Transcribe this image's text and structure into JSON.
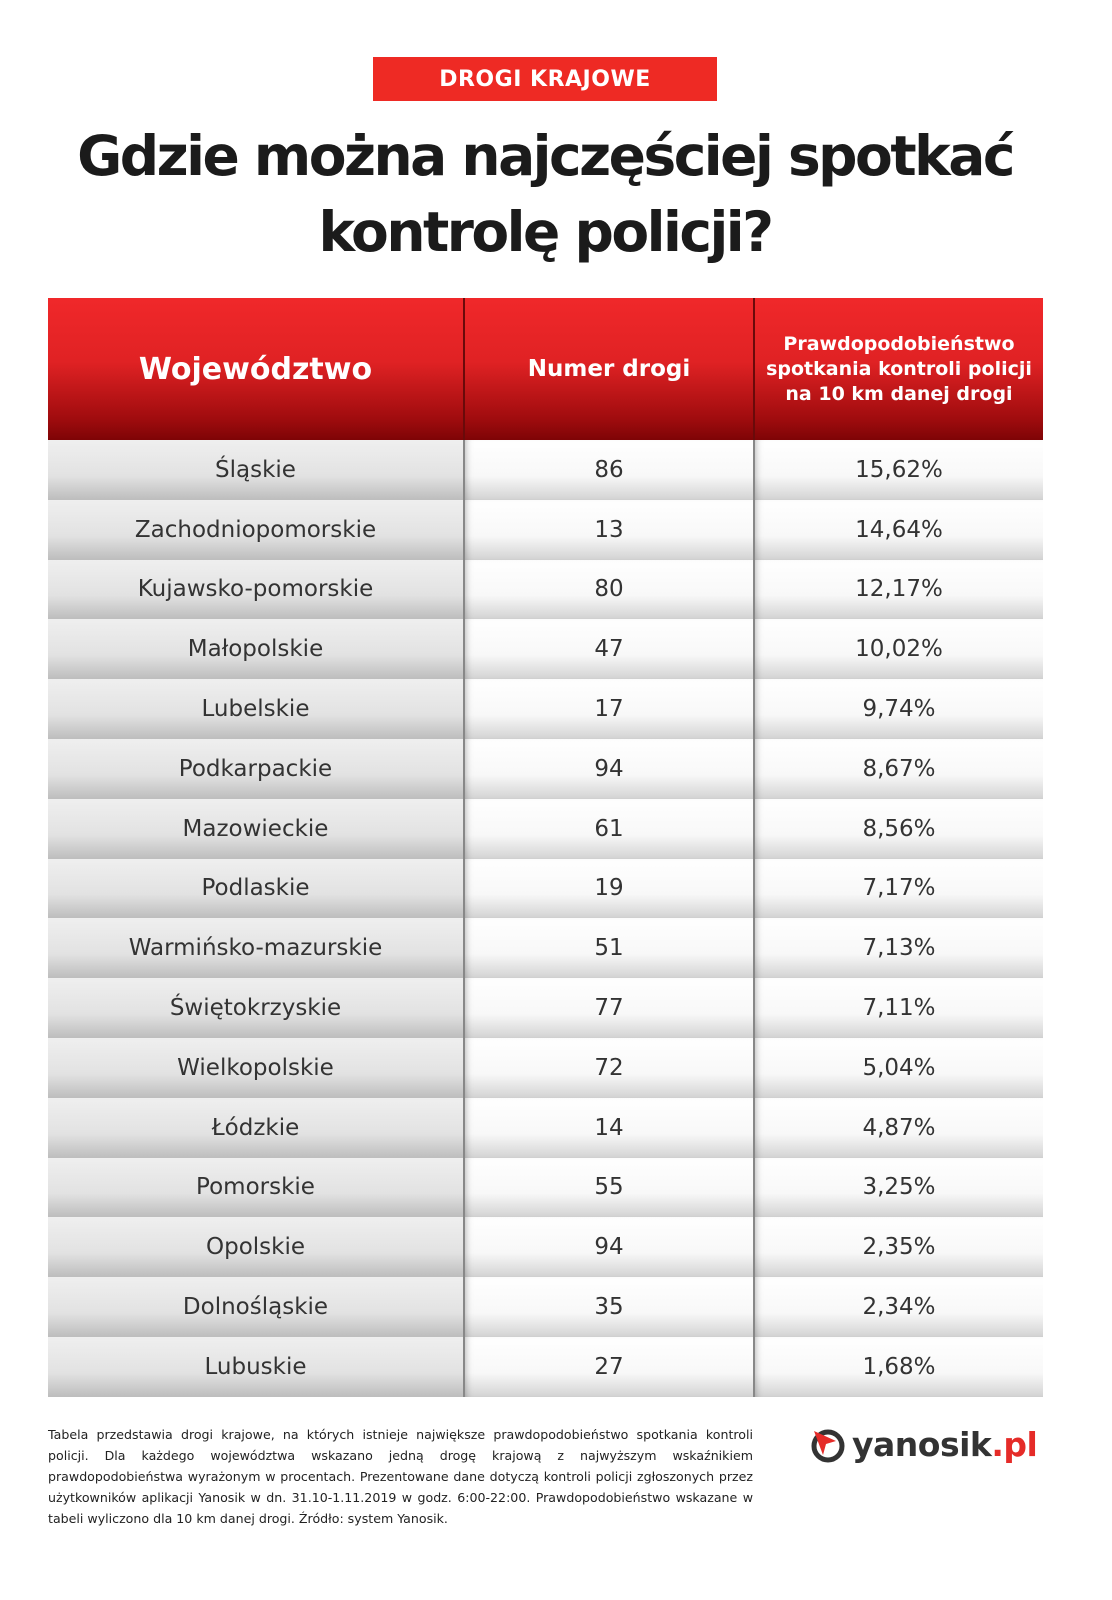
{
  "badge": "DROGI KRAJOWE",
  "title": {
    "line1": "Gdzie można najczęściej spotkać",
    "line2": "kontrolę policji?"
  },
  "table": {
    "headers": [
      "Województwo",
      "Numer drogi",
      "Prawdopodobieństwo spotkania kontroli policji na 10 km danej drogi"
    ],
    "rows": [
      [
        "Śląskie",
        "86",
        "15,62%"
      ],
      [
        "Zachodniopomorskie",
        "13",
        "14,64%"
      ],
      [
        "Kujawsko-pomorskie",
        "80",
        "12,17%"
      ],
      [
        "Małopolskie",
        "47",
        "10,02%"
      ],
      [
        "Lubelskie",
        "17",
        "9,74%"
      ],
      [
        "Podkarpackie",
        "94",
        "8,67%"
      ],
      [
        "Mazowieckie",
        "61",
        "8,56%"
      ],
      [
        "Podlaskie",
        "19",
        "7,17%"
      ],
      [
        "Warmińsko-mazurskie",
        "51",
        "7,13%"
      ],
      [
        "Świętokrzyskie",
        "77",
        "7,11%"
      ],
      [
        "Wielkopolskie",
        "72",
        "5,04%"
      ],
      [
        "Łódzkie",
        "14",
        "4,87%"
      ],
      [
        "Pomorskie",
        "55",
        "3,25%"
      ],
      [
        "Opolskie",
        "94",
        "2,35%"
      ],
      [
        "Dolnośląskie",
        "35",
        "2,34%"
      ],
      [
        "Lubuskie",
        "27",
        "1,68%"
      ]
    ]
  },
  "footer": "Tabela przedstawia drogi krajowe, na których istnieje największe prawdopodobieństwo spotkania kontroli policji. Dla każdego województwa wskazano jedną drogę krajową z najwyższym wskaźnikiem prawdopodobieństwa wyrażonym w procentach. Prezentowane dane dotyczą kontroli policji zgłoszonych przez użytkowników aplikacji Yanosik w dn. 31.10-1.11.2019 w godz. 6:00-22:00. Prawdopodobieństwo wskazane w tabeli wyliczono dla 10 km danej drogi. Źródło: system Yanosik.",
  "logo": {
    "name": "yanosik",
    "tld": ".pl"
  },
  "colors": {
    "accent": "#ee2a24",
    "header_dark": "#7e0406"
  }
}
